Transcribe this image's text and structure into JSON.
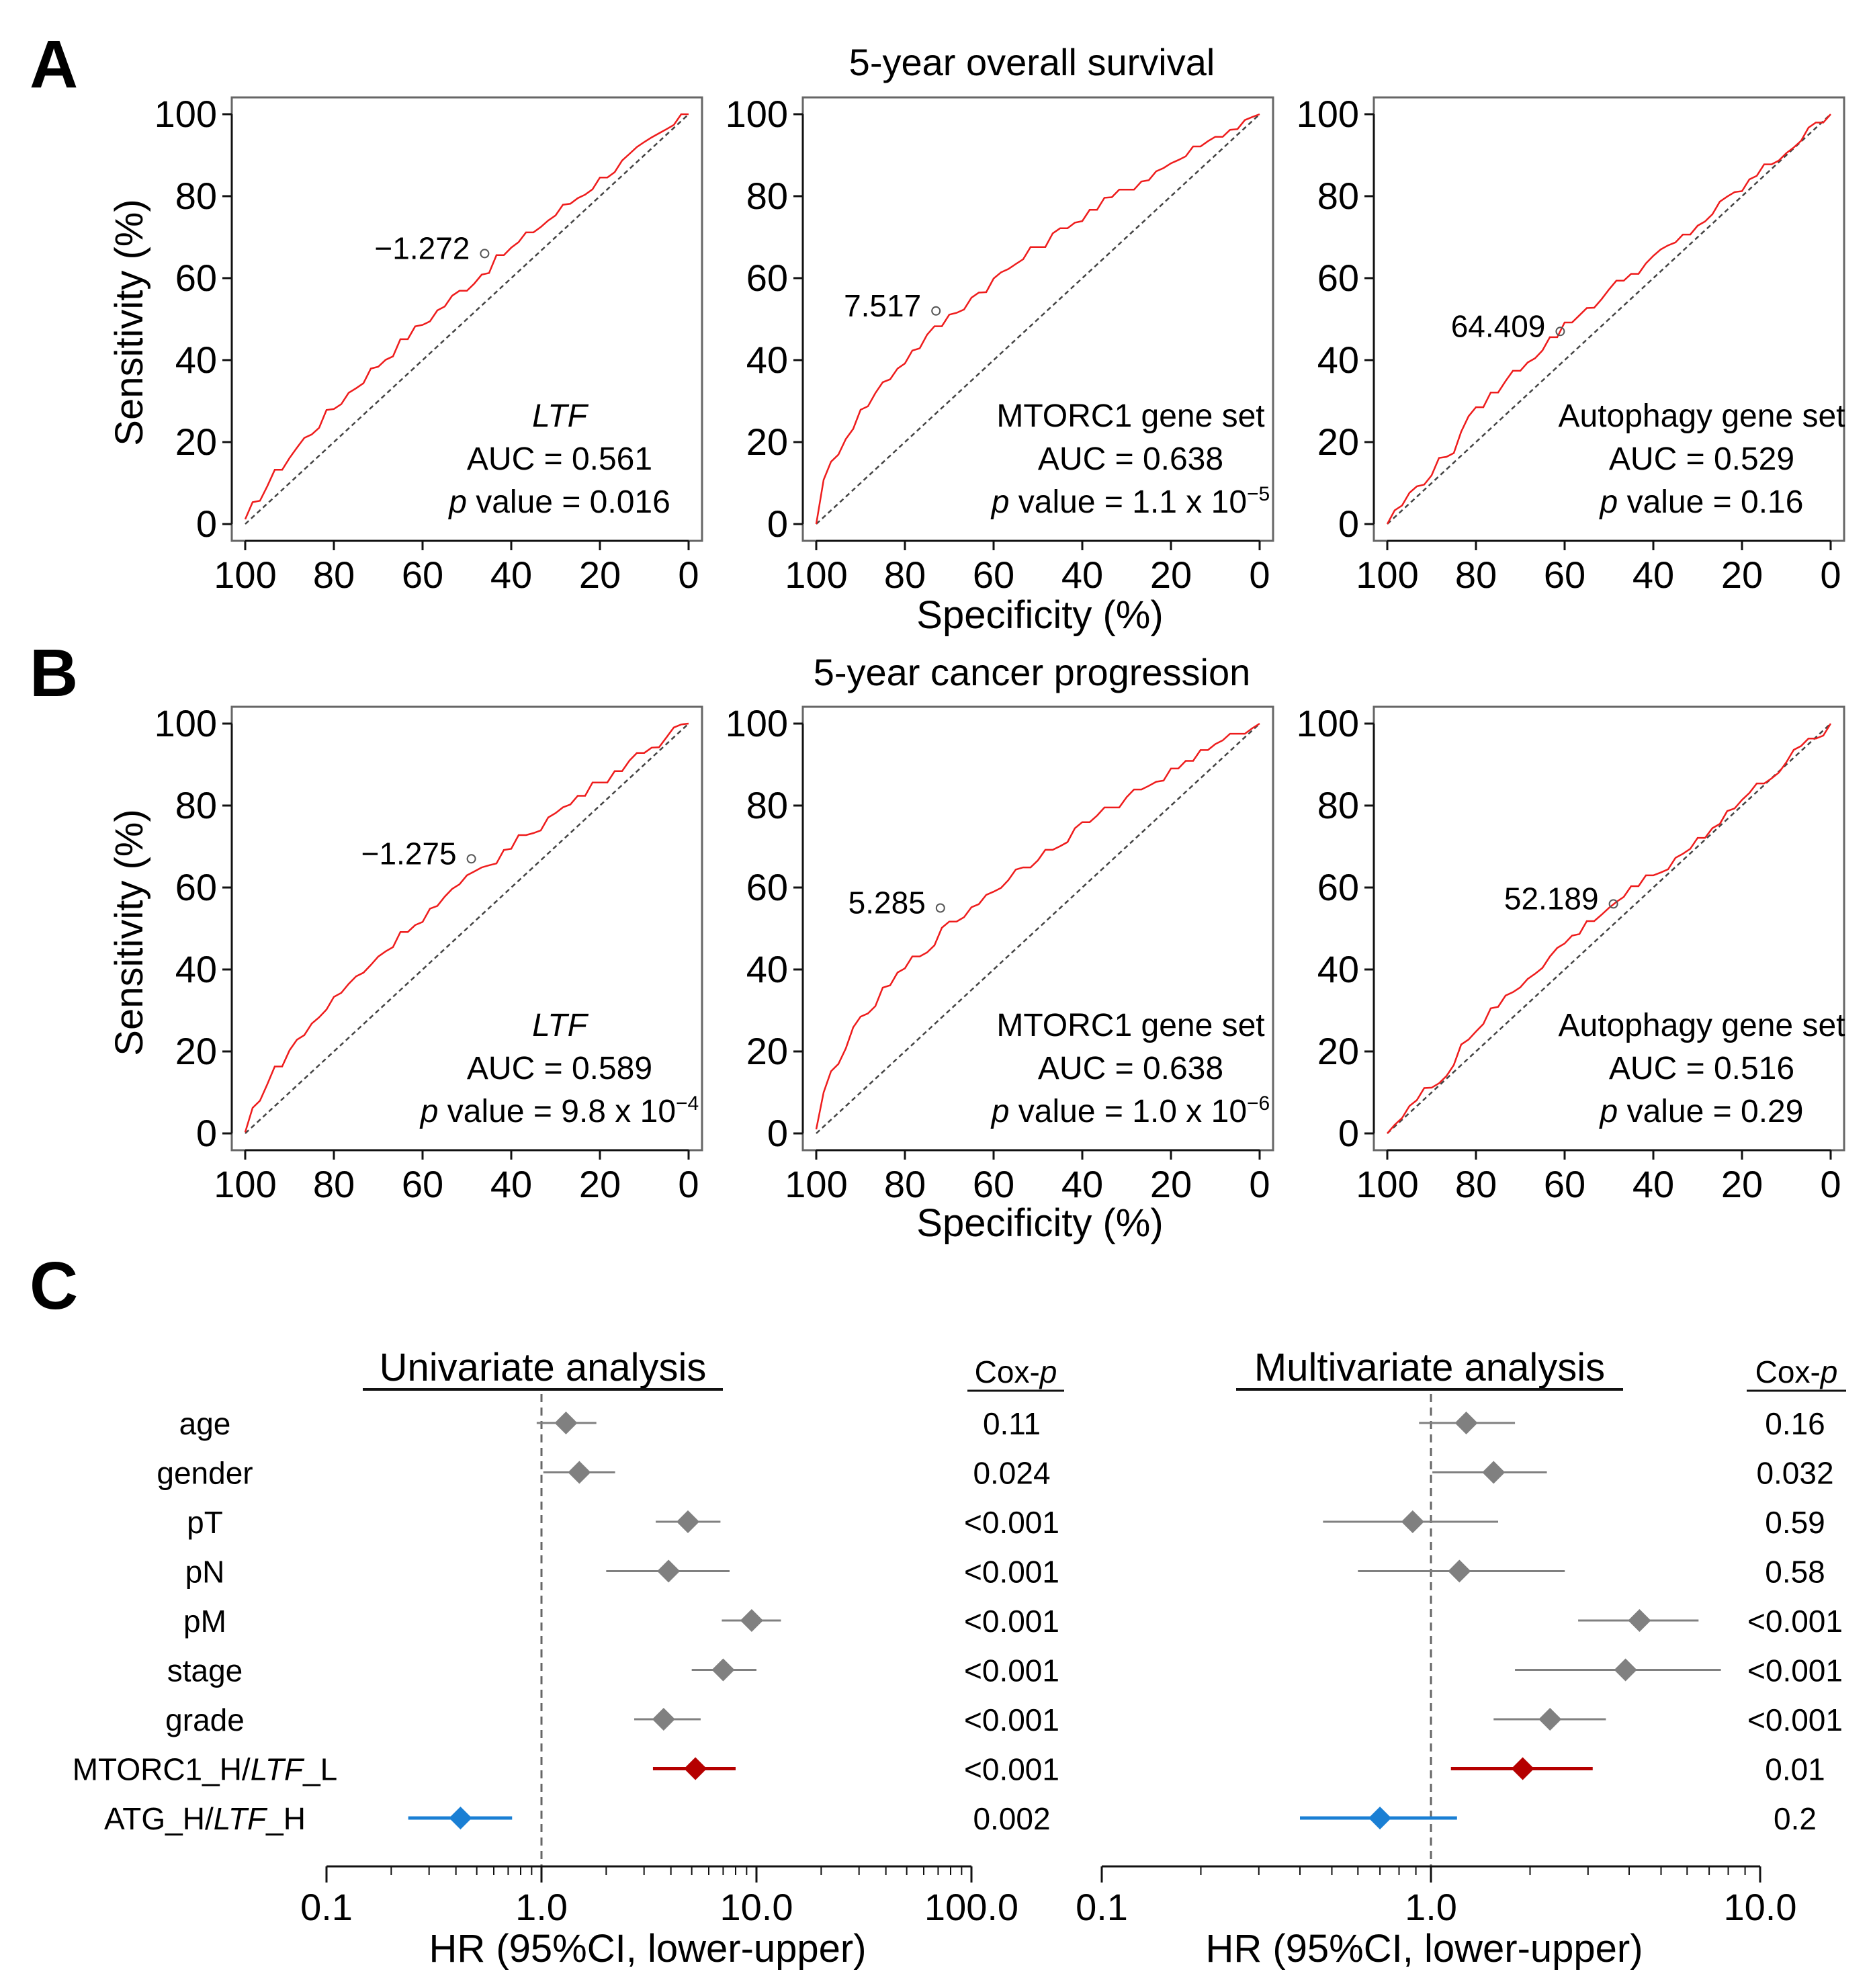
{
  "panel_labels": {
    "a": "A",
    "b": "B",
    "c": "C"
  },
  "row_titles": {
    "a": "5-year overall survival",
    "b": "5-year cancer progression"
  },
  "roc_axes": {
    "ylabel": "Sensitivity (%)",
    "xlabel": "Specificity (%)",
    "ticks": [
      "0",
      "20",
      "40",
      "60",
      "80",
      "100"
    ]
  },
  "forest": {
    "univariate_title": "Univariate analysis",
    "multivariate_title": "Multivariate analysis",
    "coxp_prefix": "Cox-",
    "coxp_italic": "p",
    "xlabel": "HR (95%CI, lower-upper)",
    "row_labels": [
      {
        "plain_before": "age",
        "italic": "",
        "plain_after": ""
      },
      {
        "plain_before": "gender",
        "italic": "",
        "plain_after": ""
      },
      {
        "plain_before": "pT",
        "italic": "",
        "plain_after": ""
      },
      {
        "plain_before": "pN",
        "italic": "",
        "plain_after": ""
      },
      {
        "plain_before": "pM",
        "italic": "",
        "plain_after": ""
      },
      {
        "plain_before": "stage",
        "italic": "",
        "plain_after": ""
      },
      {
        "plain_before": "grade",
        "italic": "",
        "plain_after": ""
      },
      {
        "plain_before": "MTORC1_H/",
        "italic": "LTF",
        "plain_after": "_L"
      },
      {
        "plain_before": "ATG_H/",
        "italic": "LTF",
        "plain_after": "_H"
      }
    ],
    "univariate_ticks": [
      "0.1",
      "1.0",
      "10.0",
      "100.0"
    ],
    "multivariate_ticks": [
      "0.1",
      "1.0",
      "10.0"
    ],
    "colors": {
      "gray": "#808080",
      "red": "#b50000",
      "blue": "#1a7fd4",
      "roc_line": "#ee1c1c",
      "ref_line": "#444444"
    }
  },
  "chart_data": [
    {
      "type": "line",
      "id": "A1",
      "gene": "LTF",
      "gene_italic": true,
      "auc_text": "AUC = 0.561",
      "p_text": " value = 0.016",
      "p_sup": "",
      "cutoff": "−1.272",
      "cutoff_point": [
        46,
        66
      ],
      "auc": 0.561,
      "xlim": [
        100,
        0
      ],
      "ylim": [
        0,
        100
      ]
    },
    {
      "type": "line",
      "id": "A2",
      "gene": "MTORC1 gene set",
      "gene_italic": false,
      "auc_text": "AUC = 0.638",
      "p_text": " value = 1.1 x 10",
      "p_sup": "−5",
      "cutoff": "7.517",
      "cutoff_point": [
        73,
        52
      ],
      "auc": 0.638,
      "xlim": [
        100,
        0
      ],
      "ylim": [
        0,
        100
      ]
    },
    {
      "type": "line",
      "id": "A3",
      "gene": "Autophagy gene set",
      "gene_italic": false,
      "auc_text": "AUC = 0.529",
      "p_text": " value = 0.16",
      "p_sup": "",
      "cutoff": "64.409",
      "cutoff_point": [
        61,
        47
      ],
      "auc": 0.529,
      "xlim": [
        100,
        0
      ],
      "ylim": [
        0,
        100
      ]
    },
    {
      "type": "line",
      "id": "B1",
      "gene": "LTF",
      "gene_italic": true,
      "auc_text": "AUC = 0.589",
      "p_text": " value = 9.8 x 10",
      "p_sup": "−4",
      "cutoff": "−1.275",
      "cutoff_point": [
        49,
        67
      ],
      "auc": 0.589,
      "xlim": [
        100,
        0
      ],
      "ylim": [
        0,
        100
      ]
    },
    {
      "type": "line",
      "id": "B2",
      "gene": "MTORC1 gene set",
      "gene_italic": false,
      "auc_text": "AUC = 0.638",
      "p_text": " value = 1.0 x 10",
      "p_sup": "−6",
      "cutoff": "5.285",
      "cutoff_point": [
        72,
        55
      ],
      "auc": 0.638,
      "xlim": [
        100,
        0
      ],
      "ylim": [
        0,
        100
      ]
    },
    {
      "type": "line",
      "id": "B3",
      "gene": "Autophagy gene set",
      "gene_italic": false,
      "auc_text": "AUC = 0.516",
      "p_text": " value = 0.29",
      "p_sup": "",
      "cutoff": "52.189",
      "cutoff_point": [
        49,
        56
      ],
      "auc": 0.516,
      "xlim": [
        100,
        0
      ],
      "ylim": [
        0,
        100
      ]
    },
    {
      "type": "scatter",
      "id": "C-univariate",
      "scale": "log10",
      "xlim": [
        0.1,
        100
      ],
      "reference": 1.0,
      "rows": [
        "age",
        "gender",
        "pT",
        "pN",
        "pM",
        "stage",
        "grade",
        "MTORC1_H/LTF_L",
        "ATG_H/LTF_H"
      ],
      "hr": [
        1.3,
        1.5,
        4.8,
        3.9,
        9.5,
        7.0,
        3.7,
        5.2,
        0.42
      ],
      "lower": [
        0.95,
        1.02,
        3.4,
        2.0,
        6.9,
        5.0,
        2.7,
        3.3,
        0.24
      ],
      "upper": [
        1.8,
        2.2,
        6.8,
        7.5,
        13.0,
        10.0,
        5.5,
        8.0,
        0.73
      ],
      "colors": [
        "gray",
        "gray",
        "gray",
        "gray",
        "gray",
        "gray",
        "gray",
        "red",
        "blue"
      ],
      "cox_p": [
        "0.11",
        "0.024",
        "<0.001",
        "<0.001",
        "<0.001",
        "<0.001",
        "<0.001",
        "<0.001",
        "0.002"
      ]
    },
    {
      "type": "scatter",
      "id": "C-multivariate",
      "scale": "log10",
      "xlim": [
        0.1,
        10
      ],
      "reference": 1.0,
      "rows": [
        "age",
        "gender",
        "pT",
        "pN",
        "pM",
        "stage",
        "grade",
        "MTORC1_H/LTF_L",
        "ATG_H/LTF_H"
      ],
      "hr": [
        1.28,
        1.55,
        0.88,
        1.22,
        4.3,
        3.9,
        2.3,
        1.9,
        0.7
      ],
      "lower": [
        0.92,
        1.01,
        0.47,
        0.6,
        2.8,
        1.8,
        1.55,
        1.15,
        0.4
      ],
      "upper": [
        1.8,
        2.25,
        1.6,
        2.55,
        6.5,
        7.6,
        3.4,
        3.1,
        1.2
      ],
      "colors": [
        "gray",
        "gray",
        "gray",
        "gray",
        "gray",
        "gray",
        "gray",
        "red",
        "blue"
      ],
      "cox_p": [
        "0.16",
        "0.032",
        "0.59",
        "0.58",
        "<0.001",
        "<0.001",
        "<0.001",
        "0.01",
        "0.2"
      ]
    }
  ]
}
